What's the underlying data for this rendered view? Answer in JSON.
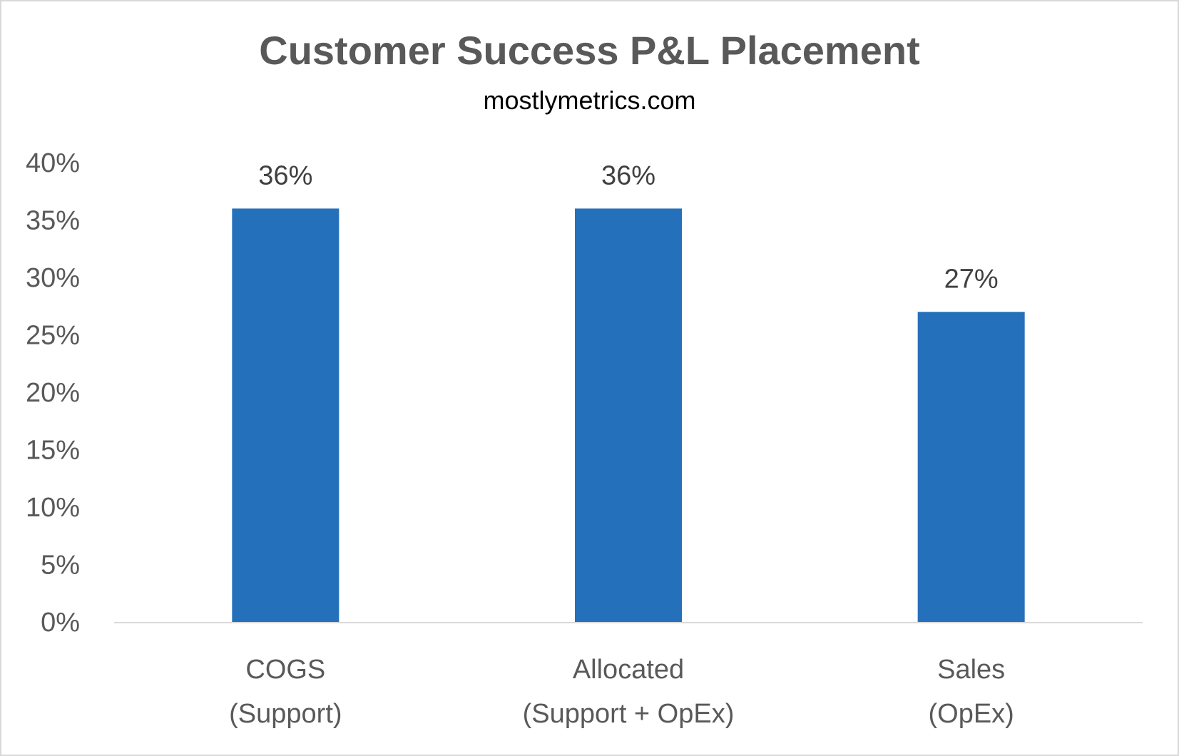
{
  "chart_data": {
    "type": "bar",
    "title": "Customer Success P&L Placement",
    "subtitle": "mostlymetrics.com",
    "categories": [
      [
        "COGS",
        "(Support)"
      ],
      [
        "Allocated",
        "(Support + OpEx)"
      ],
      [
        "Sales",
        "(OpEx)"
      ]
    ],
    "values": [
      36,
      36,
      27
    ],
    "data_labels": [
      "36%",
      "36%",
      "27%"
    ],
    "ylim": [
      0,
      40
    ],
    "yticks": [
      0,
      5,
      10,
      15,
      20,
      25,
      30,
      35,
      40
    ],
    "ytick_labels": [
      "0%",
      "5%",
      "10%",
      "15%",
      "20%",
      "25%",
      "30%",
      "35%",
      "40%"
    ],
    "grid": false,
    "legend": "none",
    "bar_color": "#2570BA",
    "axis_color": "#d9d9d9"
  }
}
